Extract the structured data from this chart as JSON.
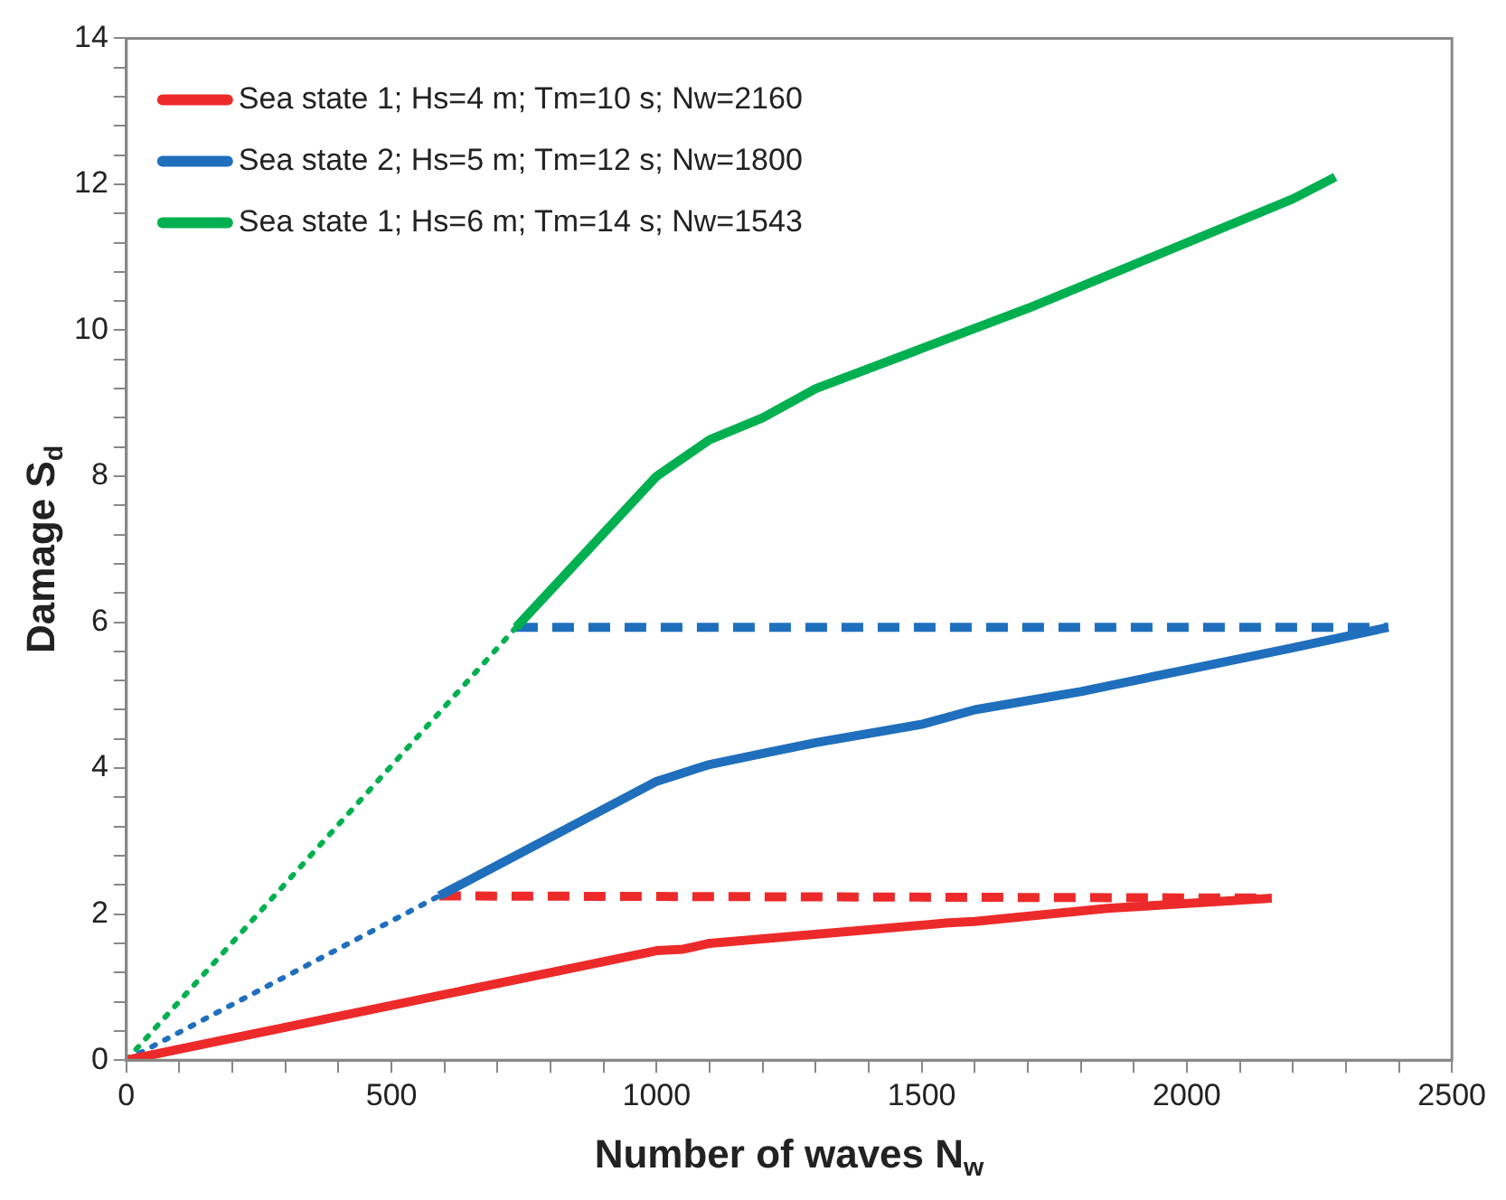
{
  "chart_data": {
    "type": "line",
    "xlabel": "Number of waves N$_{w}$",
    "ylabel": "Damage S$_{d}$",
    "xlim": [
      0,
      2500
    ],
    "ylim": [
      0,
      14
    ],
    "xticks": [
      0,
      {
        "value": 100,
        "label": null
      },
      {
        "value": 200,
        "label": null
      },
      {
        "value": 300,
        "label": null
      },
      {
        "value": 400,
        "label": null
      },
      500,
      {
        "value": 600,
        "label": null
      },
      {
        "value": 700,
        "label": null
      },
      {
        "value": 800,
        "label": null
      },
      {
        "value": 900,
        "label": null
      },
      1000,
      {
        "value": 1100,
        "label": null
      },
      {
        "value": 1200,
        "label": null
      },
      {
        "value": 1300,
        "label": null
      },
      {
        "value": 1400,
        "label": null
      },
      1500,
      {
        "value": 1600,
        "label": null
      },
      {
        "value": 1700,
        "label": null
      },
      {
        "value": 1800,
        "label": null
      },
      {
        "value": 1900,
        "label": null
      },
      2000,
      {
        "value": 2100,
        "label": null
      },
      {
        "value": 2200,
        "label": null
      },
      {
        "value": 2300,
        "label": null
      },
      {
        "value": 2400,
        "label": null
      },
      2500
    ],
    "yticks": [
      0,
      {
        "value": 0.4,
        "label": null
      },
      {
        "value": 0.8,
        "label": null
      },
      {
        "value": 1.2,
        "label": null
      },
      {
        "value": 1.6,
        "label": null
      },
      2,
      {
        "value": 2.4,
        "label": null
      },
      {
        "value": 2.8,
        "label": null
      },
      {
        "value": 3.2,
        "label": null
      },
      {
        "value": 3.6,
        "label": null
      },
      4,
      {
        "value": 4.4,
        "label": null
      },
      {
        "value": 4.8,
        "label": null
      },
      {
        "value": 5.2,
        "label": null
      },
      {
        "value": 5.6,
        "label": null
      },
      6,
      {
        "value": 6.4,
        "label": null
      },
      {
        "value": 6.8,
        "label": null
      },
      {
        "value": 7.2,
        "label": null
      },
      {
        "value": 7.6,
        "label": null
      },
      8,
      {
        "value": 8.4,
        "label": null
      },
      {
        "value": 8.8,
        "label": null
      },
      {
        "value": 9.2,
        "label": null
      },
      {
        "value": 9.6,
        "label": null
      },
      10,
      {
        "value": 10.4,
        "label": null
      },
      {
        "value": 10.8,
        "label": null
      },
      {
        "value": 11.2,
        "label": null
      },
      {
        "value": 11.6,
        "label": null
      },
      12,
      {
        "value": 12.4,
        "label": null
      },
      {
        "value": 12.8,
        "label": null
      },
      {
        "value": 13.2,
        "label": null
      },
      {
        "value": 13.6,
        "label": null
      },
      14
    ],
    "grid": false,
    "legend": "top left",
    "marker": "none",
    "series": [
      {
        "name": "Sea state 1; Hs=4 m; Tm=10 s; Nw=2160",
        "color": "#ed2a2a",
        "line_style": "solid",
        "x": [
          0,
          1000,
          1050,
          1100,
          1550,
          1600,
          1850,
          1900,
          2160
        ],
        "values": [
          0,
          1.5,
          1.52,
          1.6,
          1.88,
          1.9,
          2.08,
          2.1,
          2.22
        ]
      },
      {
        "name": "Sea state 2; Hs=5 m; Tm=12 s; Nw=1800",
        "color": "#1f6fbd",
        "line_style": "solid",
        "x": [
          590,
          1000,
          1100,
          1200,
          1300,
          1500,
          1600,
          1800,
          2000,
          2200,
          2380
        ],
        "values": [
          2.25,
          3.82,
          4.05,
          4.2,
          4.35,
          4.6,
          4.8,
          5.05,
          5.35,
          5.65,
          5.93
        ]
      },
      {
        "name": "Sea state 1; Hs=6 m; Tm=14 s; Nw=1543",
        "color": "#00b050",
        "line_style": "solid",
        "x": [
          735,
          1000,
          1100,
          1200,
          1300,
          1500,
          1700,
          1800,
          1900,
          2000,
          2100,
          2200,
          2280
        ],
        "values": [
          5.93,
          8.0,
          8.5,
          8.8,
          9.2,
          9.75,
          10.3,
          10.6,
          10.9,
          11.2,
          11.5,
          11.8,
          12.1
        ]
      },
      {
        "color": "#1f6fbd",
        "line_style": "dotted",
        "x": [
          0,
          590
        ],
        "values": [
          0,
          2.25
        ]
      },
      {
        "color": "#00b050",
        "line_style": "dotted",
        "x": [
          0,
          735
        ],
        "values": [
          0,
          5.93
        ]
      },
      {
        "color": "#ed2a2a",
        "line_style": "dashed",
        "x": [
          590,
          2160
        ],
        "values": [
          2.25,
          2.22
        ]
      },
      {
        "color": "#1f6fbd",
        "line_style": "dashed",
        "x": [
          735,
          2380
        ],
        "values": [
          5.93,
          5.93
        ]
      }
    ]
  }
}
